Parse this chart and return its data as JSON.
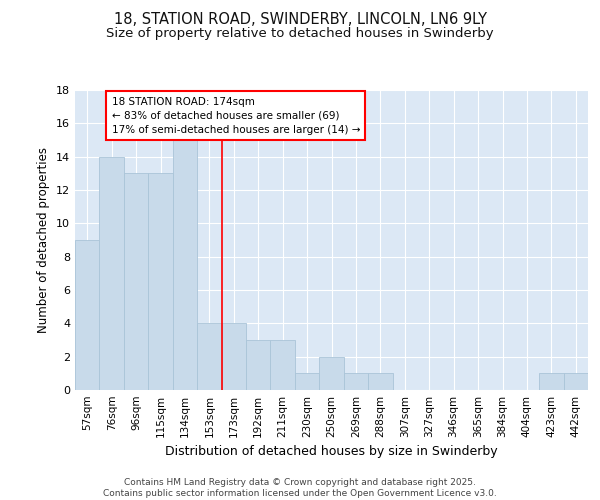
{
  "title_line1": "18, STATION ROAD, SWINDERBY, LINCOLN, LN6 9LY",
  "title_line2": "Size of property relative to detached houses in Swinderby",
  "xlabel": "Distribution of detached houses by size in Swinderby",
  "ylabel": "Number of detached properties",
  "categories": [
    "57sqm",
    "76sqm",
    "96sqm",
    "115sqm",
    "134sqm",
    "153sqm",
    "173sqm",
    "192sqm",
    "211sqm",
    "230sqm",
    "250sqm",
    "269sqm",
    "288sqm",
    "307sqm",
    "327sqm",
    "346sqm",
    "365sqm",
    "384sqm",
    "404sqm",
    "423sqm",
    "442sqm"
  ],
  "values": [
    9,
    14,
    13,
    13,
    15,
    4,
    4,
    3,
    3,
    1,
    2,
    1,
    1,
    0,
    0,
    0,
    0,
    0,
    0,
    1,
    1
  ],
  "bar_color": "#c8daea",
  "bar_edge_color": "#aac4d8",
  "red_line_x": 5.5,
  "annotation_text_line1": "18 STATION ROAD: 174sqm",
  "annotation_text_line2": "← 83% of detached houses are smaller (69)",
  "annotation_text_line3": "17% of semi-detached houses are larger (14) →",
  "footer_text": "Contains HM Land Registry data © Crown copyright and database right 2025.\nContains public sector information licensed under the Open Government Licence v3.0.",
  "ylim": [
    0,
    18
  ],
  "fig_bg_color": "#ffffff",
  "plot_bg_color": "#dce8f5",
  "grid_color": "#ffffff",
  "title_fontsize": 10.5,
  "subtitle_fontsize": 9.5,
  "yticks": [
    0,
    2,
    4,
    6,
    8,
    10,
    12,
    14,
    16,
    18
  ]
}
